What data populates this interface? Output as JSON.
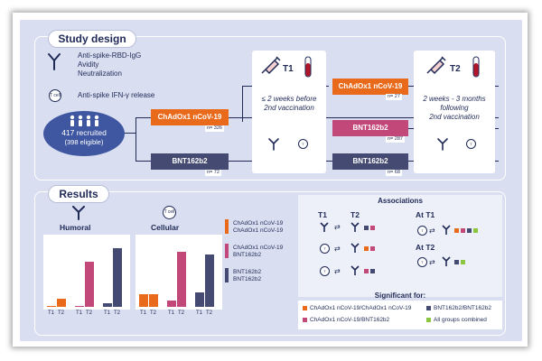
{
  "colors": {
    "chadox": "#e86a1a",
    "bnt": "#c2487a",
    "bnt_bnt": "#454a72",
    "combined": "#8cc63f",
    "navy": "#1f2a57"
  },
  "study_design": {
    "title": "Study design",
    "assays_antibody": [
      "Anti-spike-RBD-IgG",
      "Avidity",
      "Neutralization"
    ],
    "assay_tcell": "Anti-spike IFN-γ release",
    "tcell_icon_label": "T cell",
    "recruited": "417 recruited",
    "eligible": "(398 eligible)",
    "arm1": {
      "label": "ChAdOx1 nCoV-19",
      "n": "n= 326"
    },
    "arm2": {
      "label": "BNT162b2",
      "n": "n= 72"
    },
    "t1": {
      "label": "T1",
      "timing": [
        "≤ 2 weeks before",
        "2nd vaccination"
      ]
    },
    "t2": {
      "label": "T2",
      "timing": [
        "2 weeks - 3 months",
        "following",
        "2nd vaccination"
      ]
    },
    "second_dose": [
      {
        "label": "ChAdOx1 nCoV-19",
        "n": "n= 27"
      },
      {
        "label": "BNT162b2",
        "n": "n= 287"
      },
      {
        "label": "BNT162b2",
        "n": "n= 68"
      }
    ]
  },
  "results": {
    "title": "Results",
    "humoral_label": "Humoral",
    "cellular_label": "Cellular",
    "tick_labels": [
      "T1",
      "T2"
    ],
    "legend": [
      {
        "lines": [
          "ChAdOx1 nCoV-19",
          "ChAdOx1 nCoV-19"
        ],
        "color": "#e86a1a"
      },
      {
        "lines": [
          "ChAdOx1 nCoV-19",
          "BNT162b2"
        ],
        "color": "#c2487a"
      },
      {
        "lines": [
          "BNT162b2",
          "BNT162b2"
        ],
        "color": "#454a72"
      }
    ],
    "associations": {
      "title": "Associations",
      "t1_label": "T1",
      "t2_label": "T2",
      "at_t1": "At T1",
      "at_t2": "At T2"
    },
    "significant": {
      "title": "Significant for:",
      "items": [
        {
          "label": "ChAdOx1 nCoV-19/ChAdOx1 nCoV-19",
          "color": "#e86a1a"
        },
        {
          "label": "BNT162b2/BNT162b2",
          "color": "#454a72"
        },
        {
          "label": "ChAdOx1 nCoV-19/BNT162b2",
          "color": "#c2487a"
        },
        {
          "label": "All groups combined",
          "color": "#8cc63f"
        }
      ]
    }
  },
  "chart_data": [
    {
      "type": "bar",
      "title": "Humoral",
      "groups": [
        "ChAdOx1 nCoV-19",
        "ChAdOx1 nCoV-19/BNT162b2",
        "BNT162b2"
      ],
      "categories": [
        "T1",
        "T2"
      ],
      "series": [
        {
          "name": "ChAdOx1 nCoV-19 / ChAdOx1 nCoV-19",
          "values": [
            2,
            12
          ]
        },
        {
          "name": "ChAdOx1 nCoV-19 / BNT162b2",
          "values": [
            2,
            70
          ]
        },
        {
          "name": "BNT162b2 / BNT162b2",
          "values": [
            5,
            90
          ]
        }
      ],
      "ylim": [
        0,
        100
      ]
    },
    {
      "type": "bar",
      "title": "Cellular",
      "groups": [
        "ChAdOx1 nCoV-19",
        "ChAdOx1 nCoV-19/BNT162b2",
        "BNT162b2"
      ],
      "categories": [
        "T1",
        "T2"
      ],
      "series": [
        {
          "name": "ChAdOx1 nCoV-19 / ChAdOx1 nCoV-19",
          "values": [
            20,
            20
          ]
        },
        {
          "name": "ChAdOx1 nCoV-19 / BNT162b2",
          "values": [
            10,
            85
          ]
        },
        {
          "name": "BNT162b2 / BNT162b2",
          "values": [
            22,
            80
          ]
        }
      ],
      "ylim": [
        0,
        100
      ]
    }
  ]
}
